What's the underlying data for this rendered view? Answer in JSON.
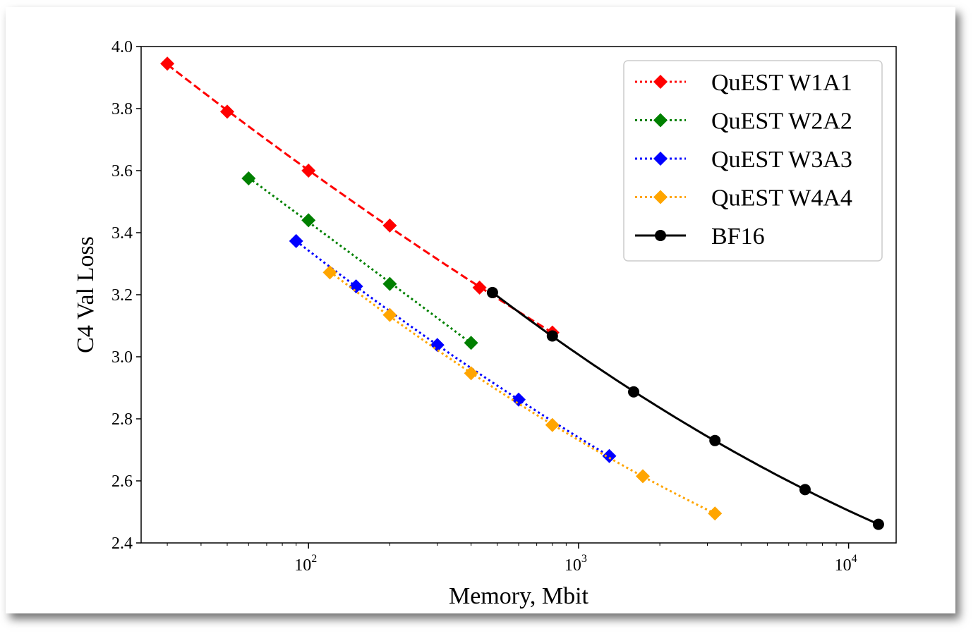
{
  "chart_data": {
    "type": "line",
    "title": "",
    "xlabel": "Memory, Mbit",
    "ylabel": "C4 Val Loss",
    "xscale": "log",
    "xlim": [
      24,
      15000
    ],
    "ylim": [
      2.4,
      4.0
    ],
    "grid": false,
    "legend_position": "top-right",
    "x_tick_labels": [
      {
        "base": "10",
        "exp": "2"
      },
      {
        "base": "10",
        "exp": "3"
      },
      {
        "base": "10",
        "exp": "4"
      }
    ],
    "y_tick_labels": [
      "2.4",
      "2.6",
      "2.8",
      "3.0",
      "3.2",
      "3.4",
      "3.6",
      "3.8",
      "4.0"
    ],
    "series": [
      {
        "name": "QuEST W1A1",
        "color": "#ff0000",
        "marker": "diamond",
        "fit_style": "dashed",
        "legend_line_style": "dotted",
        "x": [
          30,
          50,
          100,
          200,
          430,
          800
        ],
        "y": [
          3.945,
          3.79,
          3.6,
          3.423,
          3.223,
          3.078
        ]
      },
      {
        "name": "QuEST W2A2",
        "color": "#008000",
        "marker": "diamond",
        "fit_style": "dotted",
        "legend_line_style": "dotted",
        "x": [
          60,
          100,
          200,
          400
        ],
        "y": [
          3.575,
          3.44,
          3.235,
          3.045
        ]
      },
      {
        "name": "QuEST W3A3",
        "color": "#0000ff",
        "marker": "diamond",
        "fit_style": "dotted",
        "legend_line_style": "dotted",
        "x": [
          90,
          150,
          300,
          600,
          1300
        ],
        "y": [
          3.373,
          3.227,
          3.038,
          2.862,
          2.68
        ]
      },
      {
        "name": "QuEST W4A4",
        "color": "#ffa500",
        "marker": "diamond",
        "fit_style": "dotted",
        "legend_line_style": "dotted",
        "x": [
          120,
          200,
          400,
          800,
          1730,
          3200
        ],
        "y": [
          3.272,
          3.135,
          2.947,
          2.78,
          2.615,
          2.495
        ]
      },
      {
        "name": "BF16",
        "color": "#000000",
        "marker": "circle",
        "fit_style": "solid",
        "legend_line_style": "solid",
        "x": [
          480,
          800,
          1600,
          3200,
          6900,
          12900
        ],
        "y": [
          3.207,
          3.067,
          2.887,
          2.73,
          2.572,
          2.46
        ]
      }
    ]
  }
}
